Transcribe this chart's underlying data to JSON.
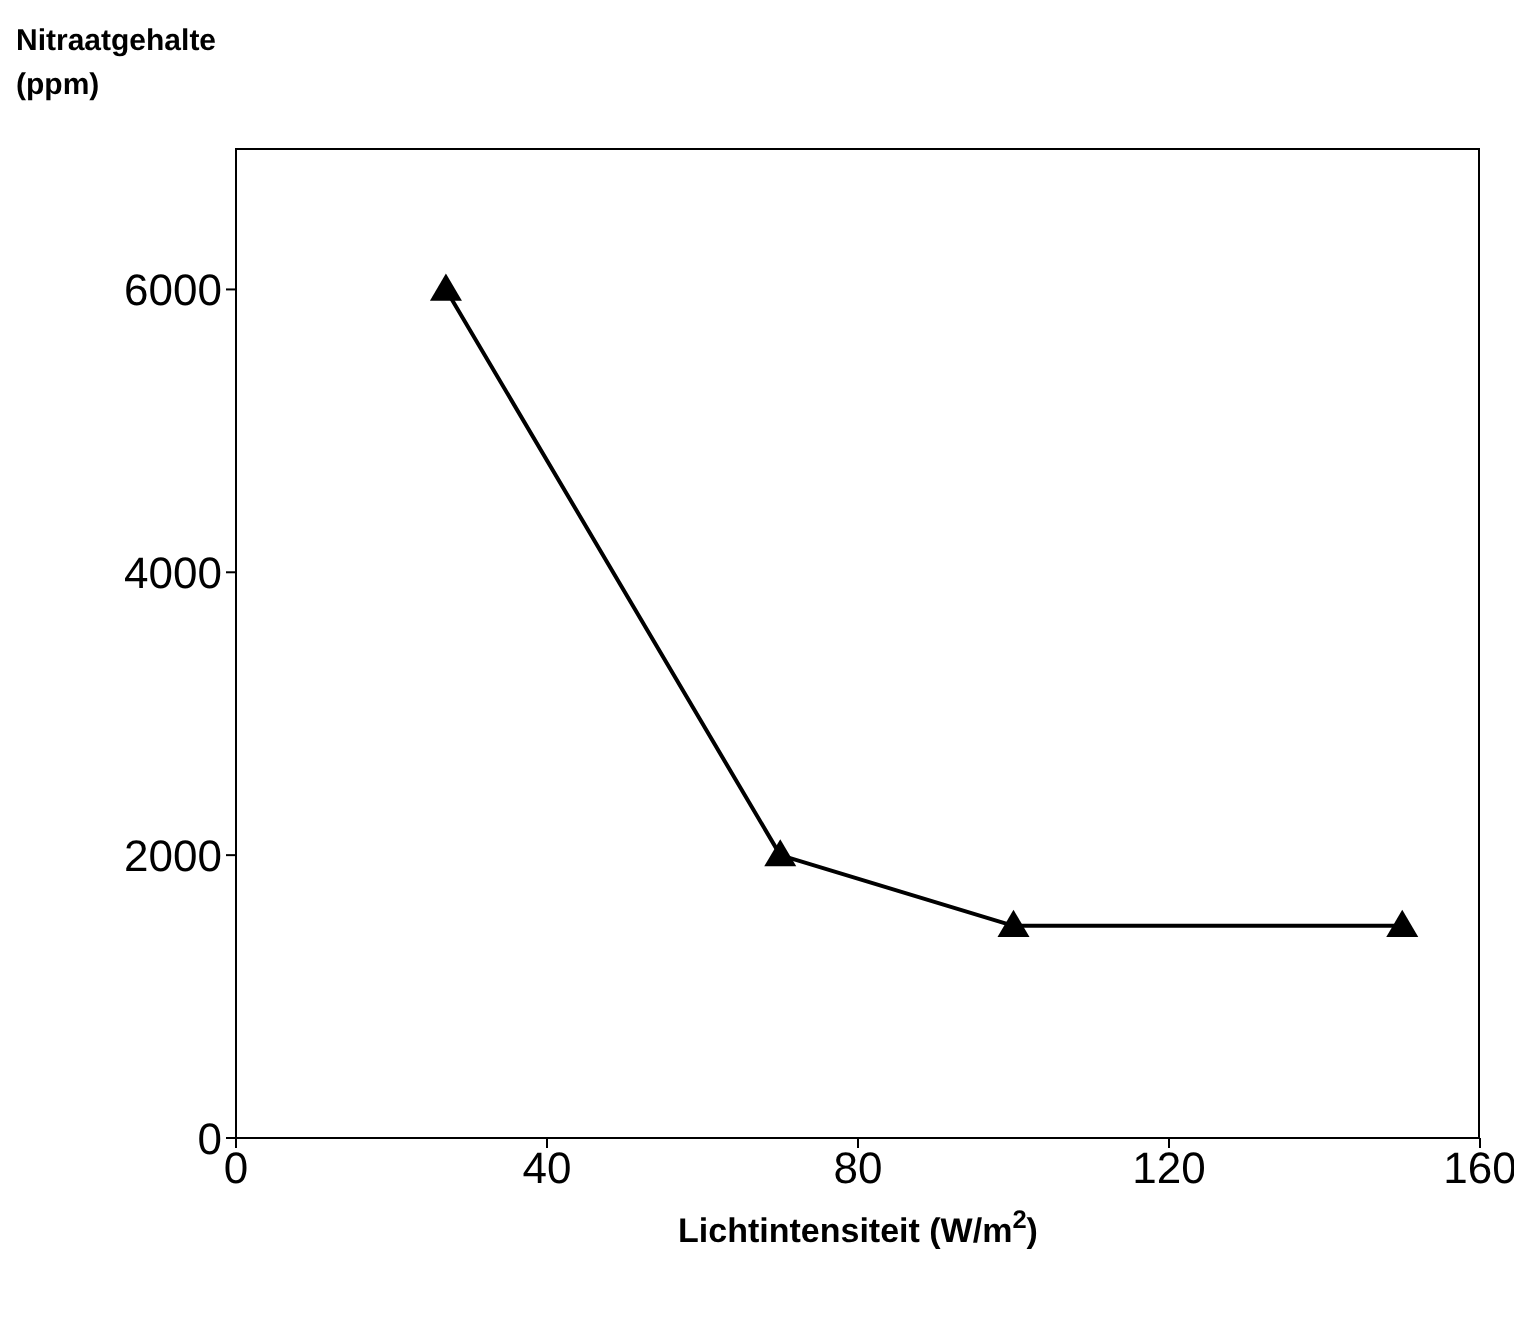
{
  "chart_data": {
    "type": "line",
    "xlabel": "Lichtintensiteit (W/m$^{2}$)",
    "ylabel": "Nitraatgehalte (ppm)",
    "x": [
      27,
      70,
      100,
      150
    ],
    "series": [
      {
        "color": "#000000",
        "values": [
          6000,
          2000,
          1500,
          1500
        ]
      }
    ],
    "xlim": [
      0,
      160
    ],
    "xticks": [
      0,
      40,
      80,
      120,
      160
    ],
    "ylim": [
      0,
      7000
    ],
    "yticks": [
      0,
      2000,
      4000,
      6000
    ],
    "marker": "triangle",
    "line_style": "solid",
    "grid": false,
    "legend": false
  }
}
